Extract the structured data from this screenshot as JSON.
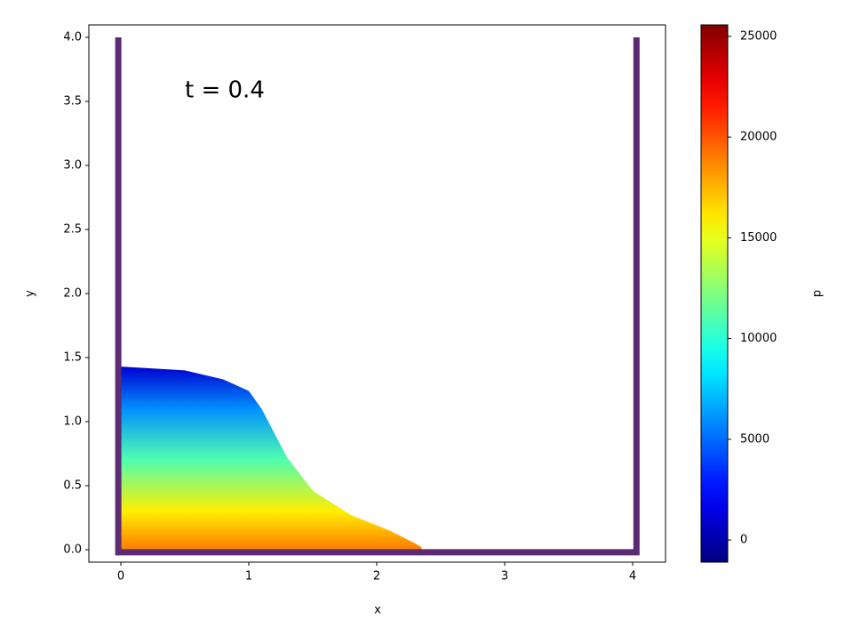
{
  "chart_data": {
    "type": "particles",
    "annotation": "t = 0.4",
    "xlabel": "x",
    "ylabel": "y",
    "xlim": [
      -0.25,
      4.257
    ],
    "ylim": [
      -0.097,
      4.097
    ],
    "xticks": [
      0,
      1,
      2,
      3,
      4
    ],
    "yticks": [
      {
        "value": 0,
        "label": "0.0"
      },
      {
        "value": 0.5,
        "label": "0.5"
      },
      {
        "value": 1,
        "label": "1.0"
      },
      {
        "value": 1.5,
        "label": "1.5"
      },
      {
        "value": 2,
        "label": "2.0"
      },
      {
        "value": 2.5,
        "label": "2.5"
      },
      {
        "value": 3,
        "label": "3.0"
      },
      {
        "value": 3.5,
        "label": "3.5"
      },
      {
        "value": 4,
        "label": "4.0"
      }
    ],
    "walls": {
      "x": [
        -0.02,
        -0.02,
        4.03,
        4.03
      ],
      "y": [
        4.0,
        -0.02,
        -0.02,
        4.0
      ],
      "color": "#5b2a72"
    },
    "surface": {
      "x": [
        0,
        0.5,
        0.8,
        1.0,
        1.1,
        1.3,
        1.5,
        1.8,
        2.1,
        2.3,
        2.35,
        2.35
      ],
      "y": [
        1.43,
        1.4,
        1.33,
        1.24,
        1.1,
        0.72,
        0.46,
        0.27,
        0.15,
        0.05,
        0.02,
        0
      ]
    },
    "pressure_profile": {
      "y": [
        0,
        0.3,
        0.7,
        1.1,
        1.43
      ],
      "p": [
        19000,
        16000,
        11000,
        6000,
        1000
      ]
    },
    "colorbar": {
      "label": "p",
      "colormap": "jet",
      "clim": [
        -1100,
        25570
      ],
      "ticks": [
        0,
        5000,
        10000,
        15000,
        20000,
        25000
      ]
    }
  }
}
